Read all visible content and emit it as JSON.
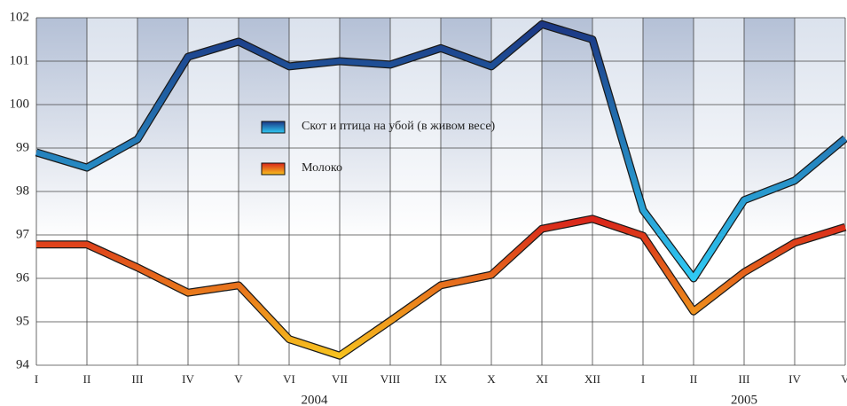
{
  "chart_data": {
    "type": "line",
    "categories": [
      "I",
      "II",
      "III",
      "IV",
      "V",
      "VI",
      "VII",
      "VIII",
      "IX",
      "X",
      "XI",
      "XII",
      "I",
      "II",
      "III",
      "IV",
      "V"
    ],
    "x_group_labels": [
      "2004",
      "2005"
    ],
    "series": [
      {
        "name": "Скот и птица на убой (в живом весе)",
        "gradient": [
          "#1b3784",
          "#2fcaf4"
        ],
        "values": [
          98.9,
          98.55,
          99.2,
          101.1,
          101.45,
          100.88,
          101.0,
          100.92,
          101.3,
          100.88,
          101.85,
          101.5,
          97.57,
          96.0,
          97.8,
          98.25,
          99.22
        ]
      },
      {
        "name": "Молоко",
        "gradient": [
          "#d9251a",
          "#f7c21e"
        ],
        "values": [
          96.78,
          96.78,
          96.25,
          95.67,
          95.84,
          94.6,
          94.22,
          95.02,
          95.84,
          96.08,
          97.14,
          97.37,
          96.98,
          95.24,
          96.14,
          96.82,
          97.18
        ]
      }
    ],
    "ylim": [
      94,
      102
    ],
    "yticks": [
      94,
      95,
      96,
      97,
      98,
      99,
      100,
      101,
      102
    ],
    "grid": true,
    "legend_position": "upper center"
  }
}
